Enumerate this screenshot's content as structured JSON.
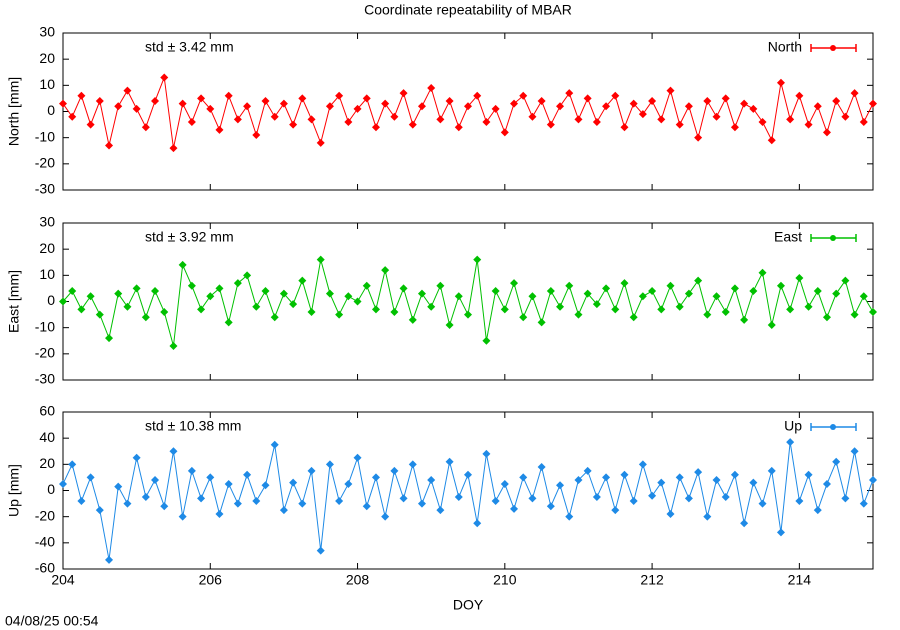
{
  "timestamp": "04/08/25 00:54",
  "chart_data": [
    {
      "type": "line",
      "title": "Coordinate repeatability of MBAR",
      "ylabel": "North [mm]",
      "annotation": "std ± 3.42 mm",
      "legend": "upper right",
      "xlim": [
        204,
        215
      ],
      "ylim": [
        -30,
        30
      ],
      "yticks": [
        -30,
        -20,
        -10,
        0,
        10,
        20,
        30
      ],
      "x": [
        204,
        204.125,
        204.25,
        204.375,
        204.5,
        204.625,
        204.75,
        204.875,
        205,
        205.125,
        205.25,
        205.375,
        205.5,
        205.625,
        205.75,
        205.875,
        206,
        206.125,
        206.25,
        206.375,
        206.5,
        206.625,
        206.75,
        206.875,
        207,
        207.125,
        207.25,
        207.375,
        207.5,
        207.625,
        207.75,
        207.875,
        208,
        208.125,
        208.25,
        208.375,
        208.5,
        208.625,
        208.75,
        208.875,
        209,
        209.125,
        209.25,
        209.375,
        209.5,
        209.625,
        209.75,
        209.875,
        210,
        210.125,
        210.25,
        210.375,
        210.5,
        210.625,
        210.75,
        210.875,
        211,
        211.125,
        211.25,
        211.375,
        211.5,
        211.625,
        211.75,
        211.875,
        212,
        212.125,
        212.25,
        212.375,
        212.5,
        212.625,
        212.75,
        212.875,
        213,
        213.125,
        213.25,
        213.375,
        213.5,
        213.625,
        213.75,
        213.875,
        214,
        214.125,
        214.25,
        214.375,
        214.5,
        214.625,
        214.75,
        214.875,
        215
      ],
      "series": [
        {
          "name": "North",
          "color": "#ff0000",
          "values": [
            3,
            -2,
            6,
            -5,
            4,
            -13,
            2,
            8,
            1,
            -6,
            4,
            13,
            -14,
            3,
            -4,
            5,
            1,
            -7,
            6,
            -3,
            2,
            -9,
            4,
            -2,
            3,
            -5,
            5,
            -3,
            -12,
            2,
            6,
            -4,
            1,
            5,
            -6,
            3,
            -2,
            7,
            -5,
            2,
            9,
            -3,
            4,
            -6,
            2,
            6,
            -4,
            1,
            -8,
            3,
            6,
            -2,
            4,
            -5,
            2,
            7,
            -3,
            5,
            -4,
            2,
            6,
            -6,
            3,
            -1,
            4,
            -3,
            8,
            -5,
            2,
            -10,
            4,
            -2,
            5,
            -6,
            3,
            1,
            -4,
            -11,
            11,
            -3,
            6,
            -5,
            2,
            -8,
            4,
            -2,
            7,
            -4,
            3
          ]
        }
      ]
    },
    {
      "type": "line",
      "ylabel": "East [mm]",
      "annotation": "std ± 3.92 mm",
      "legend": "upper right",
      "xlim": [
        204,
        215
      ],
      "ylim": [
        -30,
        30
      ],
      "yticks": [
        -30,
        -20,
        -10,
        0,
        10,
        20,
        30
      ],
      "x": [
        204,
        204.125,
        204.25,
        204.375,
        204.5,
        204.625,
        204.75,
        204.875,
        205,
        205.125,
        205.25,
        205.375,
        205.5,
        205.625,
        205.75,
        205.875,
        206,
        206.125,
        206.25,
        206.375,
        206.5,
        206.625,
        206.75,
        206.875,
        207,
        207.125,
        207.25,
        207.375,
        207.5,
        207.625,
        207.75,
        207.875,
        208,
        208.125,
        208.25,
        208.375,
        208.5,
        208.625,
        208.75,
        208.875,
        209,
        209.125,
        209.25,
        209.375,
        209.5,
        209.625,
        209.75,
        209.875,
        210,
        210.125,
        210.25,
        210.375,
        210.5,
        210.625,
        210.75,
        210.875,
        211,
        211.125,
        211.25,
        211.375,
        211.5,
        211.625,
        211.75,
        211.875,
        212,
        212.125,
        212.25,
        212.375,
        212.5,
        212.625,
        212.75,
        212.875,
        213,
        213.125,
        213.25,
        213.375,
        213.5,
        213.625,
        213.75,
        213.875,
        214,
        214.125,
        214.25,
        214.375,
        214.5,
        214.625,
        214.75,
        214.875,
        215
      ],
      "series": [
        {
          "name": "East",
          "color": "#00c000",
          "values": [
            0,
            4,
            -3,
            2,
            -5,
            -14,
            3,
            -2,
            5,
            -6,
            4,
            -4,
            -17,
            14,
            6,
            -3,
            2,
            5,
            -8,
            7,
            10,
            -2,
            4,
            -6,
            3,
            -1,
            8,
            -4,
            16,
            3,
            -5,
            2,
            0,
            6,
            -3,
            12,
            -4,
            5,
            -7,
            3,
            -2,
            6,
            -9,
            2,
            -5,
            16,
            -15,
            4,
            -3,
            7,
            -6,
            2,
            -8,
            4,
            -2,
            6,
            -5,
            3,
            -1,
            5,
            -3,
            7,
            -6,
            2,
            4,
            -3,
            6,
            -2,
            3,
            8,
            -5,
            2,
            -4,
            5,
            -7,
            4,
            11,
            -9,
            6,
            -3,
            9,
            -2,
            4,
            -6,
            3,
            8,
            -5,
            2,
            -4
          ]
        }
      ]
    },
    {
      "type": "line",
      "ylabel": "Up [mm]",
      "xlabel": "DOY",
      "annotation": "std ± 10.38 mm",
      "legend": "upper right",
      "xlim": [
        204,
        215
      ],
      "xticks": [
        204,
        206,
        208,
        210,
        212,
        214
      ],
      "ylim": [
        -60,
        60
      ],
      "yticks": [
        -60,
        -40,
        -20,
        0,
        20,
        40,
        60
      ],
      "x": [
        204,
        204.125,
        204.25,
        204.375,
        204.5,
        204.625,
        204.75,
        204.875,
        205,
        205.125,
        205.25,
        205.375,
        205.5,
        205.625,
        205.75,
        205.875,
        206,
        206.125,
        206.25,
        206.375,
        206.5,
        206.625,
        206.75,
        206.875,
        207,
        207.125,
        207.25,
        207.375,
        207.5,
        207.625,
        207.75,
        207.875,
        208,
        208.125,
        208.25,
        208.375,
        208.5,
        208.625,
        208.75,
        208.875,
        209,
        209.125,
        209.25,
        209.375,
        209.5,
        209.625,
        209.75,
        209.875,
        210,
        210.125,
        210.25,
        210.375,
        210.5,
        210.625,
        210.75,
        210.875,
        211,
        211.125,
        211.25,
        211.375,
        211.5,
        211.625,
        211.75,
        211.875,
        212,
        212.125,
        212.25,
        212.375,
        212.5,
        212.625,
        212.75,
        212.875,
        213,
        213.125,
        213.25,
        213.375,
        213.5,
        213.625,
        213.75,
        213.875,
        214,
        214.125,
        214.25,
        214.375,
        214.5,
        214.625,
        214.75,
        214.875,
        215
      ],
      "series": [
        {
          "name": "Up",
          "color": "#1e8ae6",
          "values": [
            5,
            20,
            -8,
            10,
            -15,
            -53,
            3,
            -10,
            25,
            -5,
            8,
            -12,
            30,
            -20,
            15,
            -6,
            10,
            -18,
            5,
            -10,
            12,
            -8,
            4,
            35,
            -15,
            6,
            -10,
            15,
            -46,
            20,
            -8,
            5,
            25,
            -12,
            10,
            -20,
            15,
            -6,
            20,
            -10,
            8,
            -15,
            22,
            -5,
            12,
            -25,
            28,
            -8,
            5,
            -14,
            10,
            -6,
            18,
            -12,
            4,
            -20,
            8,
            15,
            -5,
            10,
            -15,
            12,
            -8,
            20,
            -4,
            6,
            -18,
            10,
            -6,
            14,
            -20,
            8,
            -5,
            12,
            -25,
            6,
            -10,
            15,
            -32,
            37,
            -8,
            12,
            -15,
            5,
            22,
            -6,
            30,
            -10,
            8
          ]
        }
      ]
    }
  ]
}
